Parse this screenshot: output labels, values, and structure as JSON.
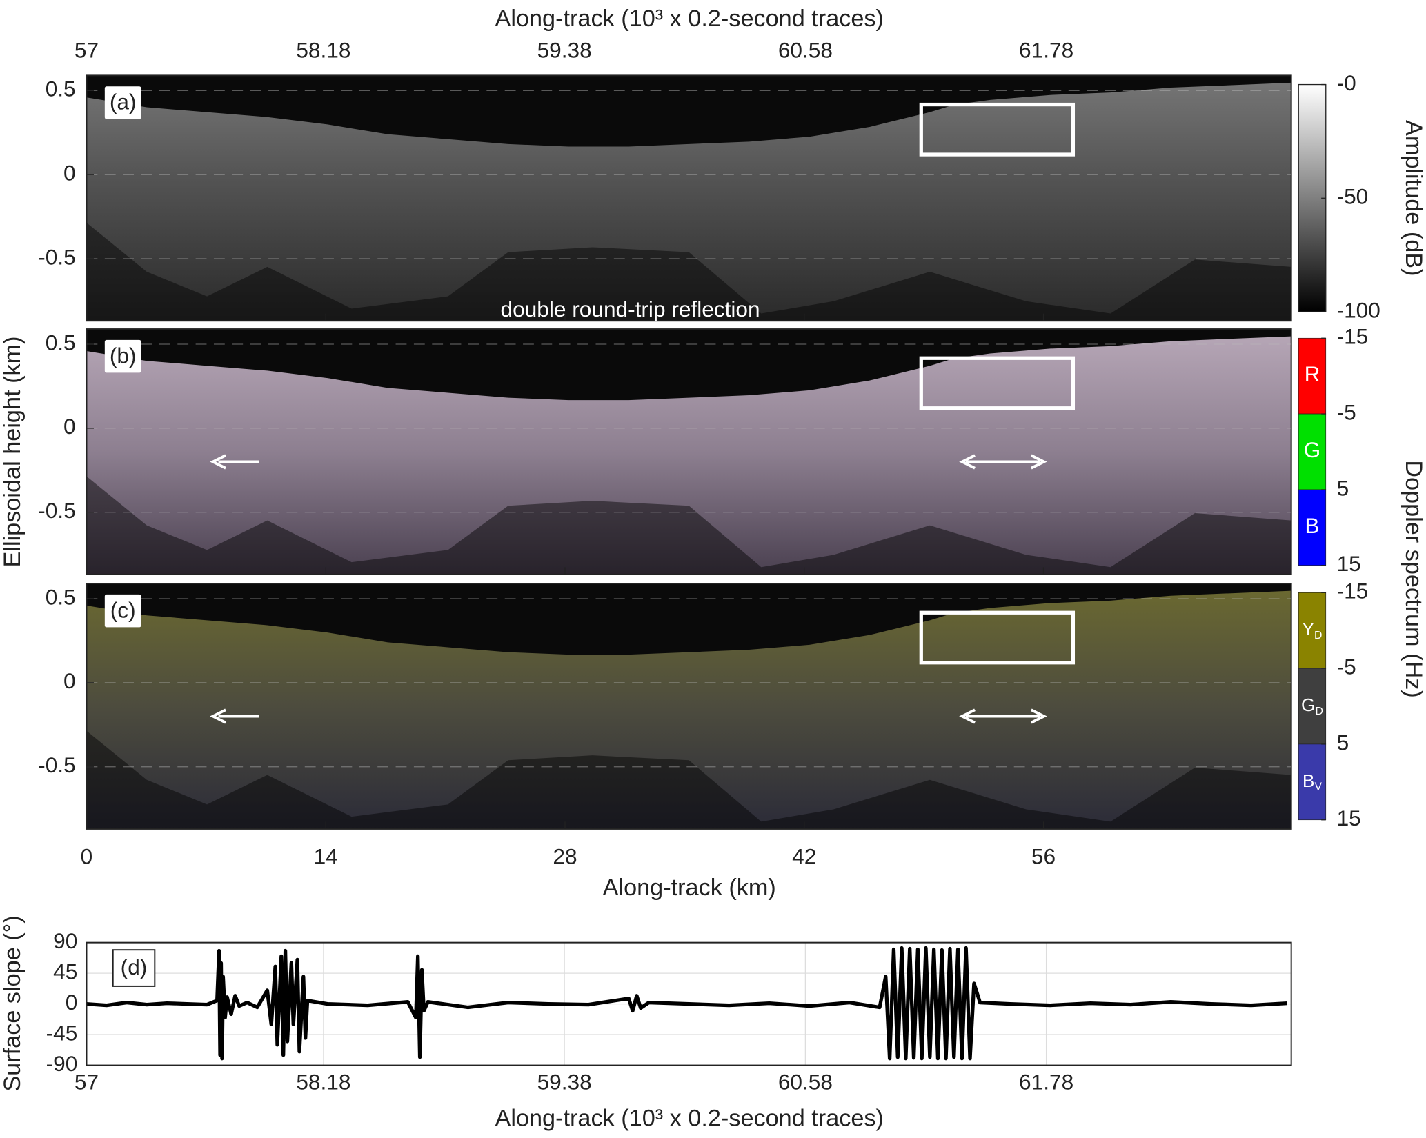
{
  "chart_data": [
    {
      "type": "radargram",
      "top_xlabel": "Along-track (10³ x 0.2-second traces)",
      "xlabel": "Along-track (km)",
      "ylabel": "Ellipsoidal height (km)",
      "xlim": [
        0,
        70.5
      ],
      "xticks": [
        0,
        14,
        28,
        42,
        56
      ],
      "x2lim": [
        57,
        63
      ],
      "x2ticks": [
        57,
        58.18,
        59.38,
        60.58,
        61.78
      ],
      "ylim": [
        -0.87,
        0.59
      ],
      "yticks": [
        0.5,
        0,
        -0.5
      ],
      "grid": true,
      "panels": [
        {
          "label": "(a)",
          "annotation": "double round-trip reflection",
          "colorbar": {
            "label": "Amplitude (dB)",
            "lim": [
              -100,
              0
            ],
            "colors": [
              "#000000",
              "#ffffff"
            ],
            "ticks": [
              {
                "value": 0,
                "label": "-0"
              },
              -50,
              -100
            ]
          }
        },
        {
          "label": "(b)",
          "colorbar": {
            "label": "Doppler spectrum (Hz)",
            "lim": [
              -15,
              15
            ],
            "ticks": [
              -15,
              -5,
              5,
              15
            ],
            "segments": [
              {
                "label": "R",
                "color": "#ff0000"
              },
              {
                "label": "G",
                "color": "#00e000"
              },
              {
                "label": "B",
                "color": "#0000ff"
              }
            ]
          }
        },
        {
          "label": "(c)",
          "colorbar": {
            "lim": [
              -15,
              15
            ],
            "ticks": [
              -15,
              -5,
              5,
              15
            ],
            "segments": [
              {
                "label": "Y",
                "sub": "D",
                "color": "#8a8300"
              },
              {
                "label": "G",
                "sub": "D",
                "color": "#3f3f3f"
              },
              {
                "label": "B",
                "sub": "V",
                "color": "#3a3aaa"
              }
            ]
          }
        }
      ]
    },
    {
      "type": "line",
      "label": "(d)",
      "xlabel": "Along-track (10³ x 0.2-second traces)",
      "ylabel": "Surface slope (°)",
      "xlim": [
        57,
        63
      ],
      "xticks": [
        57,
        58.18,
        59.38,
        60.58,
        61.78
      ],
      "ylim": [
        -90,
        90
      ],
      "yticks": [
        90,
        45,
        0,
        -45,
        -90
      ],
      "grid": true,
      "x": [
        57.0,
        57.1,
        57.2,
        57.3,
        57.4,
        57.5,
        57.6,
        57.65,
        57.66,
        57.665,
        57.67,
        57.675,
        57.68,
        57.69,
        57.7,
        57.72,
        57.74,
        57.76,
        57.8,
        57.85,
        57.9,
        57.92,
        57.94,
        57.95,
        57.97,
        57.98,
        57.99,
        58.0,
        58.02,
        58.03,
        58.05,
        58.06,
        58.08,
        58.09,
        58.1,
        58.2,
        58.4,
        58.6,
        58.64,
        58.65,
        58.66,
        58.67,
        58.68,
        58.7,
        58.9,
        59.1,
        59.3,
        59.5,
        59.7,
        59.72,
        59.74,
        59.76,
        59.8,
        60.0,
        60.2,
        60.4,
        60.6,
        60.8,
        60.95,
        60.98,
        61.0,
        61.02,
        61.04,
        61.06,
        61.08,
        61.1,
        61.12,
        61.14,
        61.16,
        61.18,
        61.2,
        61.22,
        61.24,
        61.26,
        61.28,
        61.3,
        61.32,
        61.34,
        61.36,
        61.38,
        61.4,
        61.42,
        61.45,
        61.6,
        61.8,
        62.0,
        62.2,
        62.4,
        62.6,
        62.8,
        62.98
      ],
      "series": [
        {
          "color": "#000000",
          "values": [
            0,
            -2,
            2,
            -1,
            1,
            0,
            -1,
            5,
            78,
            -75,
            60,
            -80,
            40,
            -20,
            10,
            -15,
            12,
            -3,
            2,
            -5,
            20,
            -30,
            55,
            -60,
            70,
            -75,
            78,
            -55,
            60,
            -30,
            65,
            -70,
            40,
            -50,
            5,
            0,
            -2,
            3,
            -20,
            70,
            -78,
            50,
            -10,
            3,
            -5,
            2,
            0,
            -1,
            8,
            -10,
            12,
            -6,
            2,
            0,
            -2,
            1,
            -3,
            2,
            -5,
            40,
            -80,
            80,
            -78,
            82,
            -80,
            81,
            -79,
            80,
            -80,
            82,
            -78,
            80,
            -80,
            79,
            -80,
            81,
            -78,
            80,
            -80,
            82,
            -80,
            30,
            2,
            0,
            -2,
            1,
            -1,
            3,
            0,
            -2,
            1
          ]
        }
      ]
    }
  ]
}
